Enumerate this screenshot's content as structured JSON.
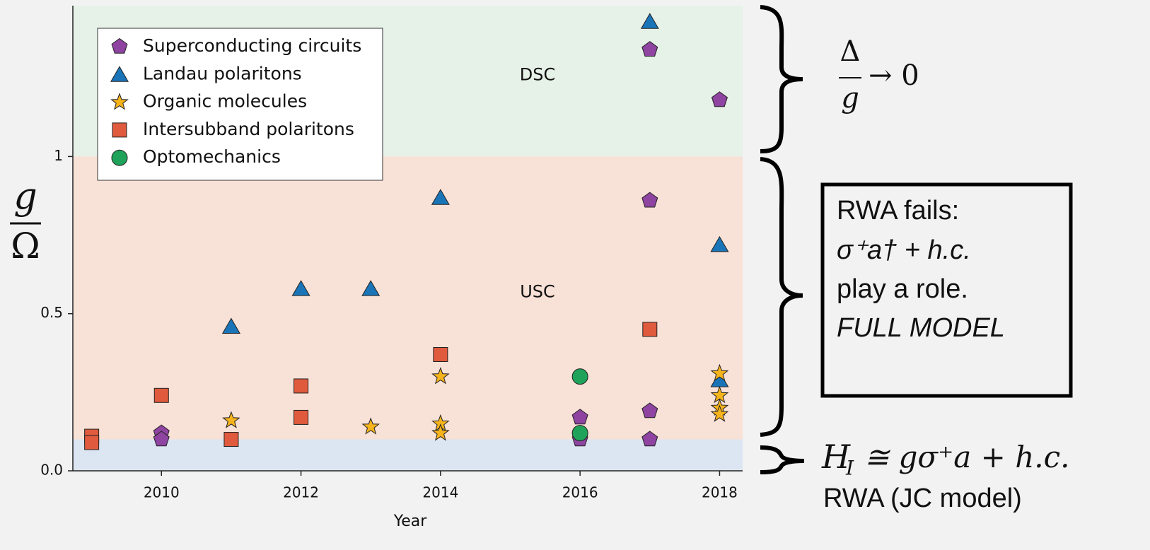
{
  "chart_data": {
    "type": "scatter",
    "x_label": "Year",
    "y_label": {
      "numerator": "g",
      "denominator": "Ω"
    },
    "xlim": [
      2008.73,
      2018.33
    ],
    "ylim": [
      0,
      1.48
    ],
    "xticks": [
      2010,
      2012,
      2014,
      2016,
      2018
    ],
    "yticks": [
      {
        "value": 0,
        "label": "0.0"
      },
      {
        "value": 0.5,
        "label": "0.5"
      },
      1
    ],
    "regions": [
      {
        "label": "DSC",
        "from": 1,
        "to": 1.48,
        "color": "#e6f1e8"
      },
      {
        "label": "USC",
        "from": 0.1,
        "to": 1,
        "color": "#f8e1d6"
      },
      {
        "from": 0,
        "to": 0.1,
        "color": "#dce5f2"
      }
    ],
    "legend": "upper left",
    "series": [
      {
        "name": "Superconducting circuits",
        "marker": "pentagon",
        "color": "#8e44a0",
        "x": [
          2010,
          2010,
          2016,
          2016,
          2017,
          2017,
          2017,
          2017,
          2018
        ],
        "values": [
          0.12,
          0.1,
          0.17,
          0.1,
          1.34,
          0.86,
          0.19,
          0.1,
          1.18
        ]
      },
      {
        "name": "Landau polaritons",
        "marker": "triangle",
        "color": "#1a75b8",
        "x": [
          2011,
          2012,
          2013,
          2014,
          2017,
          2018,
          2018
        ],
        "values": [
          0.46,
          0.58,
          0.58,
          0.87,
          1.43,
          0.72,
          0.29
        ]
      },
      {
        "name": "Organic molecules",
        "marker": "star",
        "color": "#f5b31c",
        "x": [
          2011,
          2013,
          2014,
          2014,
          2014,
          2018,
          2018,
          2018,
          2018
        ],
        "values": [
          0.16,
          0.14,
          0.3,
          0.15,
          0.12,
          0.31,
          0.24,
          0.2,
          0.18
        ]
      },
      {
        "name": "Intersubband polaritons",
        "marker": "square",
        "color": "#e05a3e",
        "x": [
          2009,
          2009,
          2010,
          2011,
          2012,
          2012,
          2014,
          2017
        ],
        "values": [
          0.11,
          0.09,
          0.24,
          0.1,
          0.27,
          0.17,
          0.37,
          0.45
        ]
      },
      {
        "name": "Optomechanics",
        "marker": "circle",
        "color": "#1fa35a",
        "x": [
          2016,
          2016
        ],
        "values": [
          0.3,
          0.12
        ]
      }
    ]
  },
  "annotations": {
    "dsc": {
      "numerator": "Δ",
      "denominator": "g",
      "suffix": "→ 0"
    },
    "usc_box": [
      "RWA fails:",
      "σ⁺a† + h.c.",
      "play a role.",
      "FULL MODEL"
    ],
    "jc": {
      "main": "H",
      "subscript": "I",
      "rest": "≅ gσ⁺a + h.c.",
      "caption": "RWA  (JC model)"
    }
  }
}
